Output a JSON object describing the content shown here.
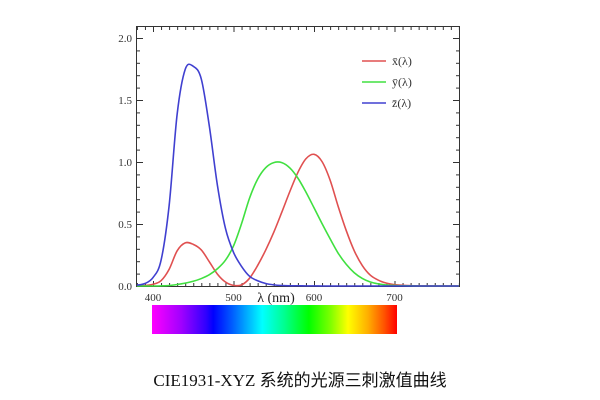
{
  "chart_data": {
    "type": "line",
    "title": "",
    "xlabel": "λ (nm)",
    "ylabel": "",
    "xlim": [
      380,
      780
    ],
    "ylim": [
      0,
      2.0
    ],
    "grid": false,
    "legend_position": "upper right",
    "x_ticks": [
      400,
      500,
      600,
      700
    ],
    "y_ticks": [
      "0.0",
      "0.5",
      "1.0",
      "1.5",
      "2.0"
    ],
    "x": [
      380,
      390,
      400,
      410,
      420,
      430,
      440,
      450,
      460,
      470,
      480,
      490,
      500,
      510,
      520,
      530,
      540,
      550,
      560,
      570,
      580,
      590,
      600,
      610,
      620,
      630,
      640,
      650,
      660,
      670,
      680,
      690,
      700,
      710,
      720,
      730,
      740,
      750,
      760,
      770,
      780
    ],
    "series": [
      {
        "name": "x̄(λ)",
        "color": "#e05050",
        "values": [
          0.001,
          0.004,
          0.014,
          0.043,
          0.134,
          0.284,
          0.348,
          0.336,
          0.291,
          0.195,
          0.096,
          0.032,
          0.005,
          0.009,
          0.063,
          0.166,
          0.29,
          0.433,
          0.595,
          0.762,
          0.916,
          1.026,
          1.062,
          1.003,
          0.854,
          0.642,
          0.448,
          0.284,
          0.165,
          0.087,
          0.047,
          0.023,
          0.011,
          0.006,
          0.003,
          0.001,
          0.001,
          0.0,
          0.0,
          0.0,
          0.0
        ]
      },
      {
        "name": "ȳ(λ)",
        "color": "#40e040",
        "values": [
          0.0,
          0.0,
          0.0,
          0.001,
          0.004,
          0.012,
          0.023,
          0.038,
          0.06,
          0.091,
          0.139,
          0.208,
          0.323,
          0.503,
          0.71,
          0.862,
          0.954,
          0.995,
          0.995,
          0.952,
          0.87,
          0.757,
          0.631,
          0.503,
          0.381,
          0.265,
          0.175,
          0.107,
          0.061,
          0.032,
          0.017,
          0.008,
          0.004,
          0.002,
          0.001,
          0.0,
          0.0,
          0.0,
          0.0,
          0.0,
          0.0
        ]
      },
      {
        "name": "z̄(λ)",
        "color": "#4040d0",
        "values": [
          0.007,
          0.02,
          0.068,
          0.207,
          0.646,
          1.386,
          1.747,
          1.772,
          1.669,
          1.288,
          0.813,
          0.465,
          0.272,
          0.158,
          0.078,
          0.042,
          0.02,
          0.009,
          0.004,
          0.002,
          0.002,
          0.001,
          0.001,
          0.0,
          0.0,
          0.0,
          0.0,
          0.0,
          0.0,
          0.0,
          0.0,
          0.0,
          0.0,
          0.0,
          0.0,
          0.0,
          0.0,
          0.0,
          0.0,
          0.0,
          0.0
        ]
      }
    ],
    "spectrum_bar": {
      "from_nm": 400,
      "to_nm": 700
    }
  },
  "legend": [
    {
      "label": "x̄(λ)",
      "color": "#e05050"
    },
    {
      "label": "ȳ(λ)",
      "color": "#40e040"
    },
    {
      "label": "z̄(λ)",
      "color": "#4040d0"
    }
  ],
  "caption": "CIE1931-XYZ 系统的光源三刺激值曲线"
}
